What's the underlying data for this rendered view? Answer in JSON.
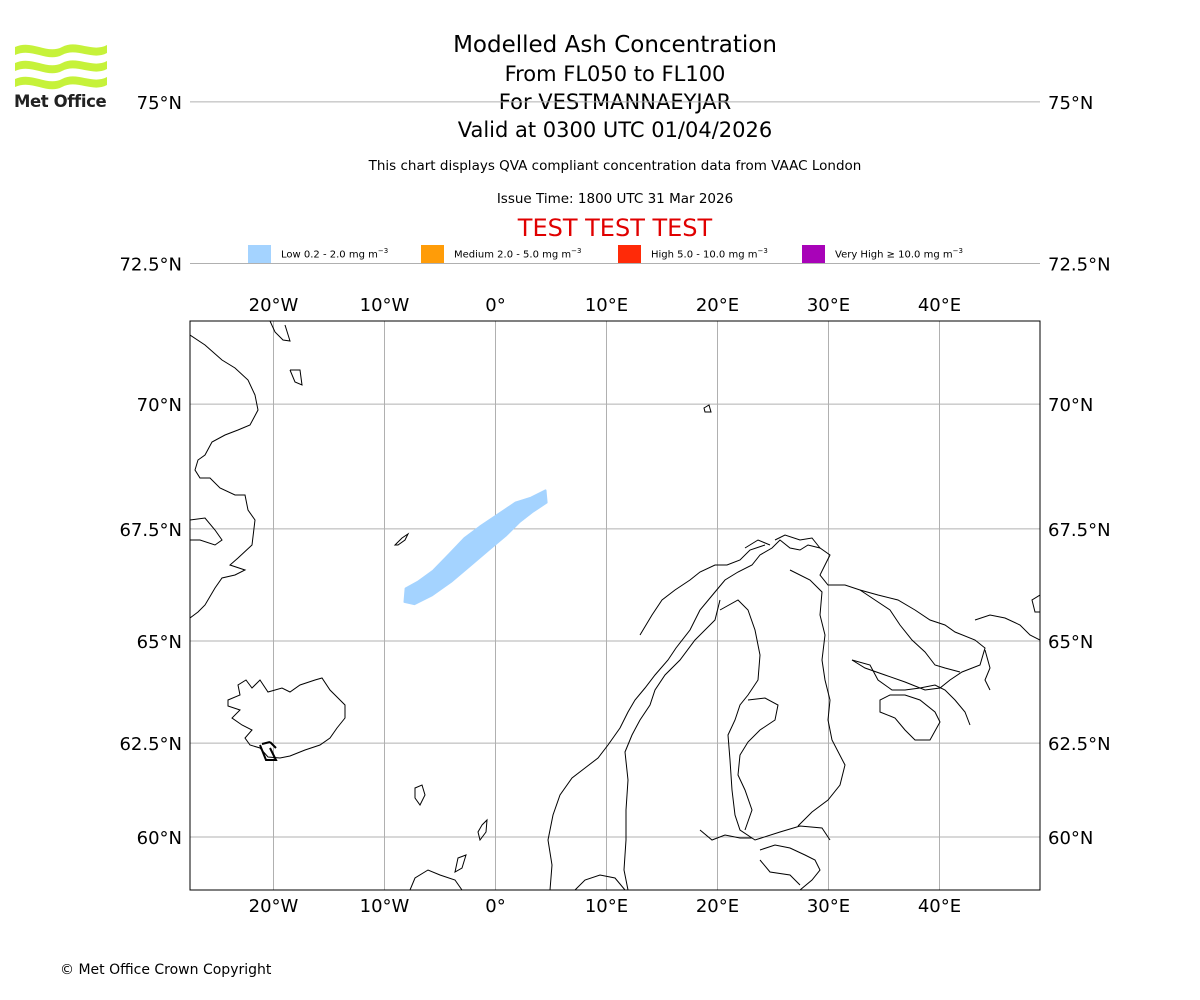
{
  "header": {
    "logo_text": "Met Office",
    "title": "Modelled Ash Concentration",
    "subtitle_levels": "From FL050 to FL100",
    "subtitle_volcano": "For VESTMANNAEYJAR",
    "subtitle_valid": "Valid at 0300 UTC 01/04/2026",
    "description": "This chart displays QVA compliant concentration data from VAAC London",
    "issue_time": "Issue Time: 1800 UTC 31 Mar 2026",
    "test_banner": "TEST TEST TEST"
  },
  "legend": [
    {
      "label": "Low 0.2 - 2.0 mg m",
      "color": "#a4d3ff"
    },
    {
      "label": "Medium 2.0 - 5.0 mg m",
      "color": "#ff9c08"
    },
    {
      "label": "High 5.0 - 10.0 mg m",
      "color": "#ff2a08"
    },
    {
      "label": "Very High ≥ 10.0 mg m",
      "color": "#a803b8"
    }
  ],
  "legend_unit_exponent": "−3",
  "map": {
    "lon_ticks": [
      {
        "value": -20,
        "label": "20°W"
      },
      {
        "value": -10,
        "label": "10°W"
      },
      {
        "value": 0,
        "label": "0°"
      },
      {
        "value": 10,
        "label": "10°E"
      },
      {
        "value": 20,
        "label": "20°E"
      },
      {
        "value": 30,
        "label": "30°E"
      },
      {
        "value": 40,
        "label": "40°E"
      }
    ],
    "lat_ticks": [
      {
        "value": 75,
        "label": "75°N"
      },
      {
        "value": 72.5,
        "label": "72.5°N"
      },
      {
        "value": 70,
        "label": "70°N"
      },
      {
        "value": 67.5,
        "label": "67.5°N"
      },
      {
        "value": 65,
        "label": "65°N"
      },
      {
        "value": 62.5,
        "label": "62.5°N"
      },
      {
        "value": 60,
        "label": "60°N"
      }
    ],
    "ash_plume": {
      "level": "Low",
      "color": "#a4d3ff",
      "outline": [
        [
          -8.1,
          66.2
        ],
        [
          -7.0,
          66.35
        ],
        [
          -5.6,
          66.6
        ],
        [
          -4.2,
          66.95
        ],
        [
          -2.8,
          67.3
        ],
        [
          -1.4,
          67.55
        ],
        [
          0.2,
          67.8
        ],
        [
          1.8,
          68.05
        ],
        [
          3.2,
          68.15
        ],
        [
          4.5,
          68.3
        ],
        [
          4.6,
          68.05
        ],
        [
          3.3,
          67.85
        ],
        [
          2.2,
          67.65
        ],
        [
          0.9,
          67.35
        ],
        [
          -0.6,
          67.05
        ],
        [
          -2.3,
          66.7
        ],
        [
          -4.0,
          66.35
        ],
        [
          -5.7,
          66.05
        ],
        [
          -7.3,
          65.85
        ],
        [
          -8.2,
          65.9
        ]
      ]
    }
  },
  "footer": {
    "copyright": "© Met Office Crown Copyright"
  }
}
